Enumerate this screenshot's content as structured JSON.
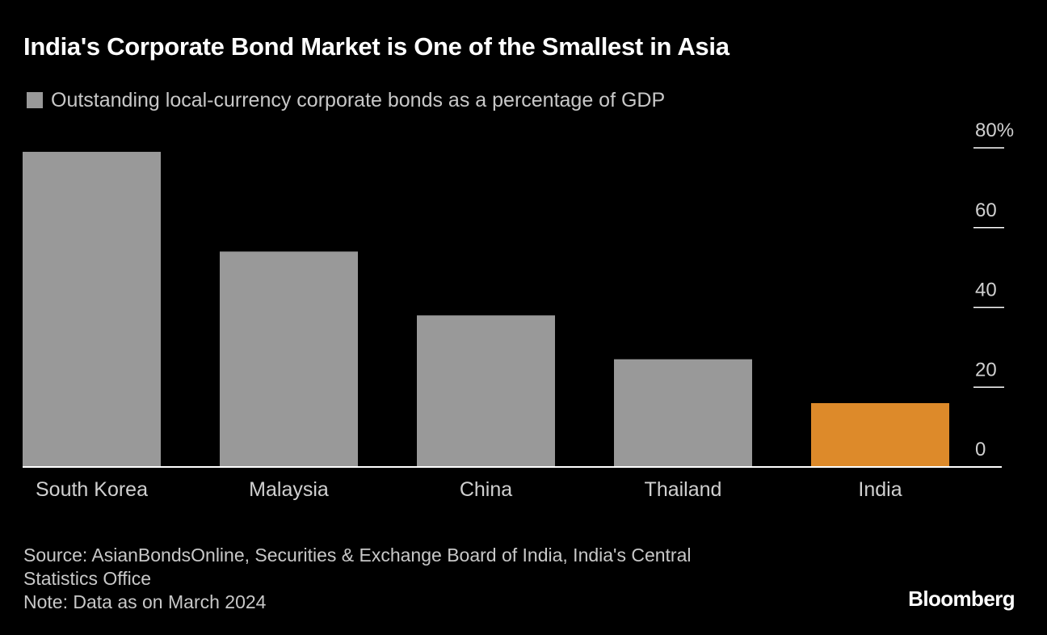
{
  "header": {
    "title": "India's Corporate Bond Market is One of the Smallest in Asia"
  },
  "legend": {
    "label": "Outstanding local-currency corporate bonds as a percentage of GDP",
    "color": "#999999"
  },
  "footer": {
    "source_line1": "Source: AsianBondsOnline, Securities & Exchange Board of India, India's Central",
    "source_line2": "Statistics Office",
    "note": "Note: Data as on March 2024",
    "brand": "Bloomberg"
  },
  "colors": {
    "background": "#000000",
    "default_bar": "#999999",
    "highlight_bar": "#dd8a2a",
    "axis": "#ffffff"
  },
  "chart_data": {
    "type": "bar",
    "categories": [
      "South Korea",
      "Malaysia",
      "China",
      "Thailand",
      "India"
    ],
    "series": [
      {
        "name": "Outstanding local-currency corporate bonds as a percentage of GDP",
        "values": [
          79,
          54,
          38,
          27,
          16
        ]
      }
    ],
    "highlight": "India",
    "ylim": [
      0,
      80
    ],
    "yticks": [
      0,
      20,
      40,
      60,
      80
    ],
    "ytick_labels": [
      "0",
      "20",
      "40",
      "60",
      "80%"
    ],
    "yaxis_position": "right",
    "grid": false,
    "legend_position": "top-left"
  }
}
